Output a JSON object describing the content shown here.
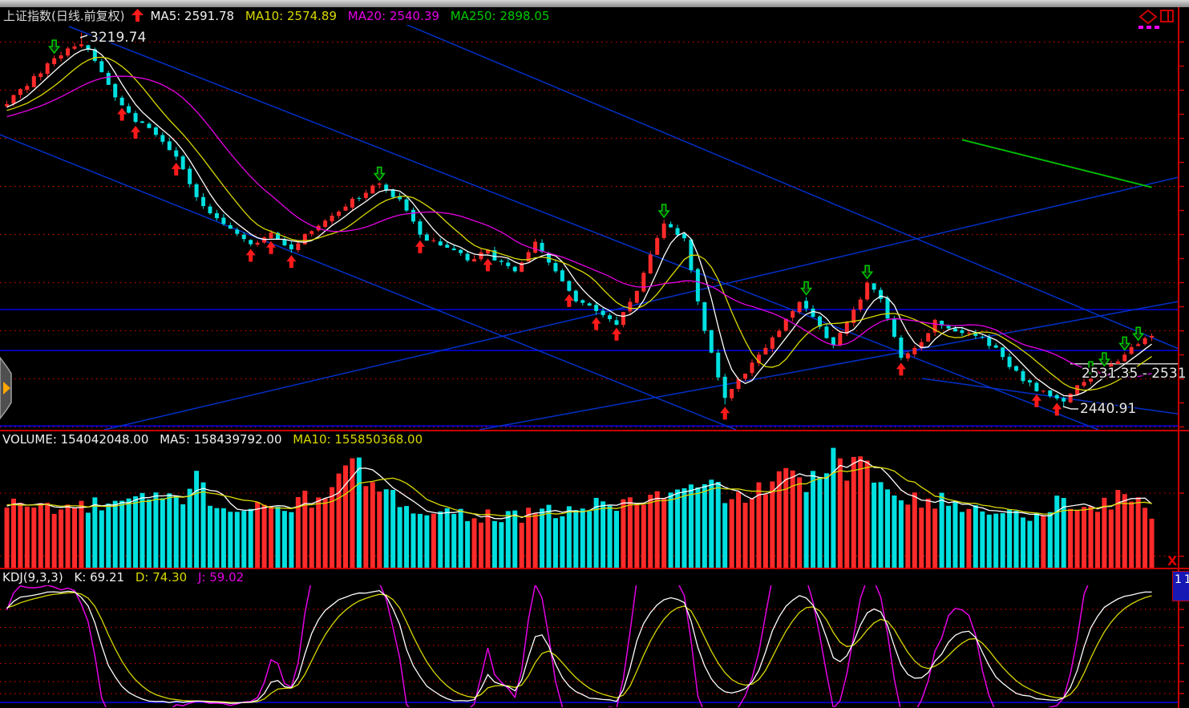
{
  "header": {
    "title": "上证指数(日线.前复权)",
    "trend_arrow": "up",
    "indicators": [
      {
        "label": "MA5: 2591.78",
        "color": "#f0f0f0"
      },
      {
        "label": "MA10: 2574.89",
        "color": "#d8d800"
      },
      {
        "label": "MA20: 2540.39",
        "color": "#e400e4"
      },
      {
        "label": "MA250: 2898.05",
        "color": "#00c800"
      }
    ]
  },
  "volume_pane": {
    "label_volume": "VOLUME: 154042048.00",
    "label_ma5": "MA5: 158439792.00",
    "label_ma10": "MA10: 155850368.00"
  },
  "kdj_pane": {
    "label_name": "KDJ(9,3,3)",
    "label_k": "K: 69.21",
    "label_d": "D: 74.30",
    "label_j": "J: 59.02"
  },
  "annotations": {
    "high_label": "3219.74",
    "last_label": "2531.35 - 2531",
    "low_label": "2440.91"
  },
  "right_edge": {
    "close_label": "X",
    "count_badge": "11"
  },
  "colors": {
    "up": "#ff2a2a",
    "down": "#00e0e0",
    "grid": "#c80000",
    "trendline": "#0030c8",
    "support": "#0000e8",
    "axis": "#c80000",
    "ma5": "#ffffff",
    "ma10": "#d8d800",
    "ma20": "#e400e4",
    "ma250": "#00bb00",
    "buy_arrow": "#ff1a1a",
    "sell_arrow": "#00cc00",
    "last_close_line": "#cccccc",
    "annotation": "#e8e8e8"
  },
  "chart_data": [
    {
      "type": "candlestick",
      "title": "上证指数(日线.前复权)",
      "period": "daily",
      "candle_count": 170,
      "ylim": [
        2395,
        3245
      ],
      "grid_prices": [
        2400,
        2500,
        2600,
        2700,
        2800,
        2900,
        3000,
        3100,
        3200
      ],
      "visible_high": 3219.74,
      "visible_low": 2440.91,
      "last_close": 2531.35,
      "price_anchors": [
        [
          -25,
          2990
        ],
        [
          -15,
          3035
        ],
        [
          -5,
          3052
        ],
        [
          0,
          3075
        ],
        [
          3,
          3110
        ],
        [
          6,
          3150
        ],
        [
          9,
          3185
        ],
        [
          11,
          3200
        ],
        [
          13,
          3160
        ],
        [
          16,
          3090
        ],
        [
          19,
          3040
        ],
        [
          22,
          3010
        ],
        [
          25,
          2965
        ],
        [
          28,
          2880
        ],
        [
          31,
          2830
        ],
        [
          36,
          2775
        ],
        [
          39,
          2800
        ],
        [
          42,
          2772
        ],
        [
          46,
          2820
        ],
        [
          50,
          2862
        ],
        [
          55,
          2905
        ],
        [
          58,
          2868
        ],
        [
          61,
          2800
        ],
        [
          65,
          2772
        ],
        [
          68,
          2748
        ],
        [
          71,
          2762
        ],
        [
          75,
          2722
        ],
        [
          78,
          2780
        ],
        [
          81,
          2722
        ],
        [
          84,
          2662
        ],
        [
          88,
          2632
        ],
        [
          90,
          2618
        ],
        [
          93,
          2680
        ],
        [
          97,
          2825
        ],
        [
          100,
          2790
        ],
        [
          103,
          2600
        ],
        [
          106,
          2458
        ],
        [
          109,
          2512
        ],
        [
          113,
          2582
        ],
        [
          117,
          2658
        ],
        [
          120,
          2612
        ],
        [
          122,
          2568
        ],
        [
          125,
          2640
        ],
        [
          127,
          2695
        ],
        [
          129,
          2665
        ],
        [
          132,
          2548
        ],
        [
          135,
          2576
        ],
        [
          137,
          2620
        ],
        [
          140,
          2600
        ],
        [
          143,
          2590
        ],
        [
          146,
          2562
        ],
        [
          149,
          2512
        ],
        [
          152,
          2478
        ],
        [
          154,
          2470
        ],
        [
          156,
          2452
        ],
        [
          158,
          2482
        ],
        [
          161,
          2512
        ],
        [
          164,
          2542
        ],
        [
          166,
          2566
        ],
        [
          169,
          2592
        ]
      ],
      "marked_high": [
        11,
        3219.74
      ],
      "marked_lows": [
        [
          106,
          2447
        ],
        [
          156,
          2440.91
        ]
      ],
      "buy_signal_indices": [
        17,
        19,
        25,
        36,
        39,
        42,
        61,
        71,
        83,
        87,
        90,
        106,
        132,
        152,
        155
      ],
      "sell_signal_indices": [
        7,
        55,
        97,
        118,
        127,
        160,
        162,
        165,
        167
      ],
      "moving_averages": [
        {
          "name": "MA5",
          "window": 5,
          "color": "#ffffff"
        },
        {
          "name": "MA10",
          "window": 10,
          "color": "#d8d800"
        },
        {
          "name": "MA20",
          "window": 20,
          "color": "#e400e4"
        }
      ],
      "ma250_segment": {
        "name": "MA250",
        "color": "#00bb00",
        "points": [
          [
            141,
            2997
          ],
          [
            169,
            2898
          ]
        ]
      },
      "support_levels": [
        2644,
        2559,
        2402
      ],
      "last_close_line_span_x": [
        1335,
        1483
      ],
      "trendlines": [
        {
          "from": [
            86,
            33
          ],
          "to": [
            1370,
            536
          ]
        },
        {
          "from": [
            0,
            168
          ],
          "to": [
            918,
            536
          ]
        },
        {
          "from": [
            434,
            0
          ],
          "to": [
            1470,
            435
          ]
        },
        {
          "from": [
            130,
            536
          ],
          "to": [
            1470,
            221
          ]
        },
        {
          "from": [
            598,
            536
          ],
          "to": [
            1470,
            376
          ]
        },
        {
          "from": [
            1150,
            472
          ],
          "to": [
            1483,
            518
          ]
        }
      ],
      "annotation_positions": {
        "high": [
          112,
          52
        ],
        "last": [
          1349,
          471
        ],
        "low": [
          1347,
          515
        ]
      }
    },
    {
      "type": "bar",
      "name": "VOLUME",
      "current": 154042048.0,
      "ma5": 158439792.0,
      "ma10": 155850368.0,
      "grid_levels": [
        65,
        10
      ],
      "up_color": "#ff2a2a",
      "down_color": "#00e0e0",
      "ma": [
        {
          "name": "MA5",
          "window": 5,
          "color": "#ffffff"
        },
        {
          "name": "MA10",
          "window": 10,
          "color": "#d8d800"
        }
      ],
      "volume_anchors": [
        [
          -10,
          55
        ],
        [
          0,
          55
        ],
        [
          10,
          52
        ],
        [
          20,
          58
        ],
        [
          27,
          62
        ],
        [
          28,
          97
        ],
        [
          30,
          56
        ],
        [
          35,
          50
        ],
        [
          40,
          52
        ],
        [
          45,
          60
        ],
        [
          52,
          88
        ],
        [
          55,
          62
        ],
        [
          60,
          55
        ],
        [
          65,
          48
        ],
        [
          70,
          46
        ],
        [
          75,
          44
        ],
        [
          80,
          48
        ],
        [
          85,
          52
        ],
        [
          90,
          56
        ],
        [
          95,
          60
        ],
        [
          100,
          66
        ],
        [
          105,
          70
        ],
        [
          108,
          58
        ],
        [
          112,
          72
        ],
        [
          116,
          78
        ],
        [
          120,
          76
        ],
        [
          122,
          92
        ],
        [
          124,
          85
        ],
        [
          126,
          88
        ],
        [
          128,
          80
        ],
        [
          131,
          70
        ],
        [
          134,
          62
        ],
        [
          137,
          58
        ],
        [
          140,
          55
        ],
        [
          143,
          50
        ],
        [
          146,
          52
        ],
        [
          149,
          45
        ],
        [
          152,
          48
        ],
        [
          155,
          58
        ],
        [
          158,
          52
        ],
        [
          161,
          55
        ],
        [
          164,
          60
        ],
        [
          166,
          58
        ],
        [
          168,
          55
        ],
        [
          169,
          50
        ]
      ]
    },
    {
      "type": "line",
      "name": "KDJ(9,3,3)",
      "current": {
        "K": 69.21,
        "D": 74.3,
        "J": 59.02
      },
      "computed_from": "candles",
      "ylim": [
        0,
        100
      ],
      "grid_levels": [
        80,
        65,
        50,
        35,
        20,
        10
      ],
      "baseline_level": 2.7,
      "lines": [
        {
          "name": "K",
          "color": "#ffffff"
        },
        {
          "name": "D",
          "color": "#d8d800"
        },
        {
          "name": "J",
          "color": "#e400e4"
        }
      ]
    }
  ]
}
